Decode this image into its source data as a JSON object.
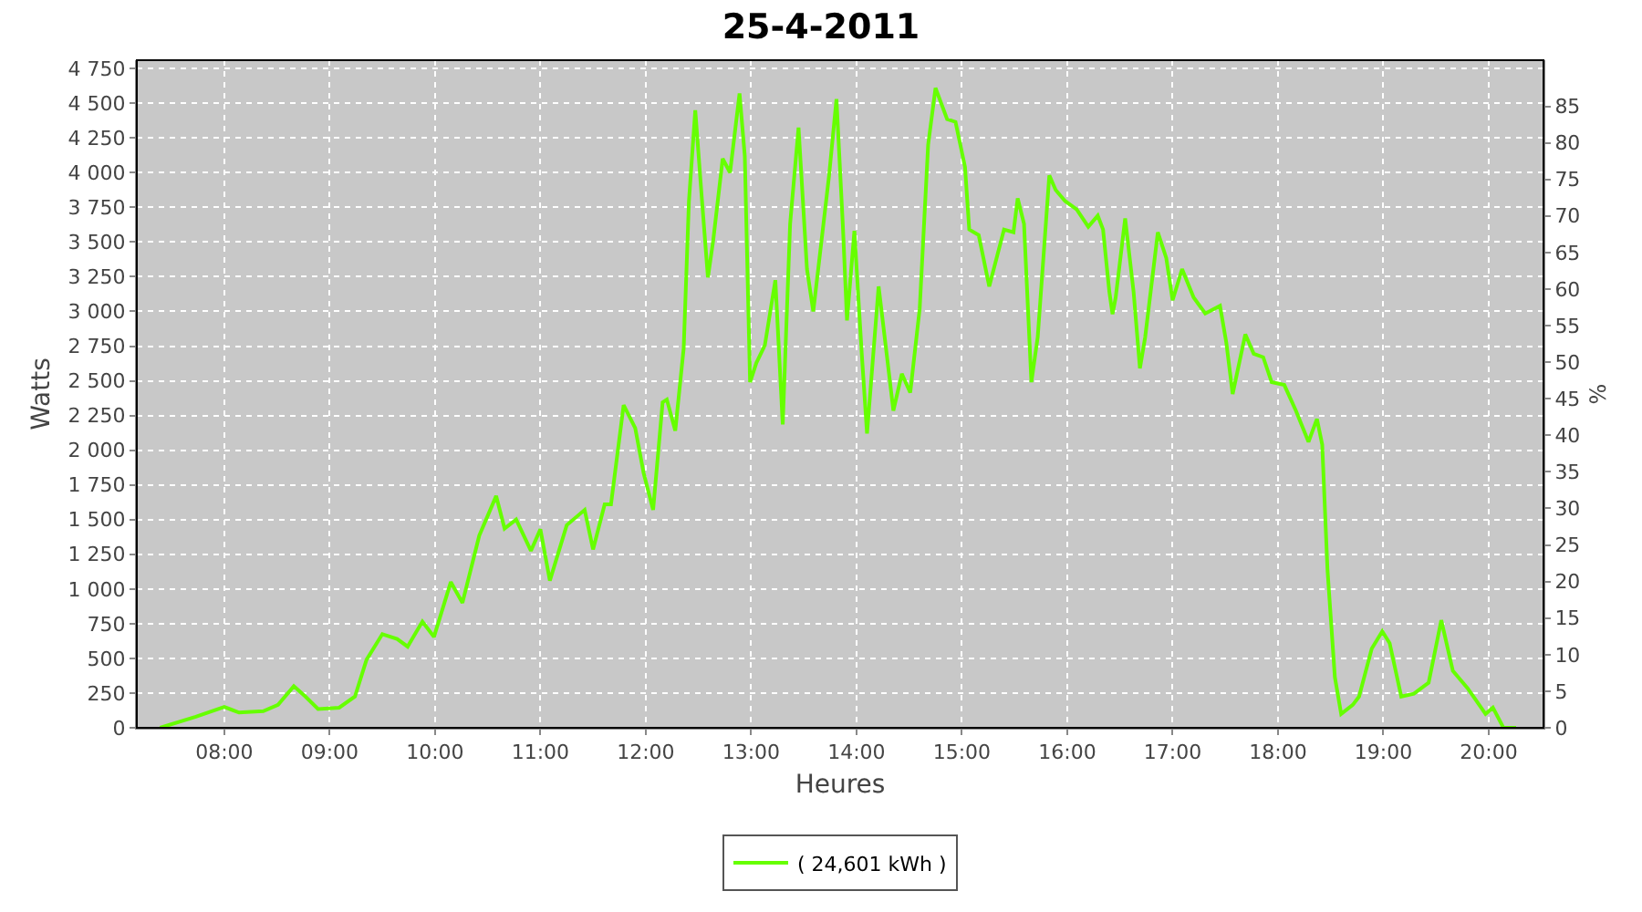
{
  "chart_data": {
    "type": "line",
    "title": "25-4-2011",
    "xlabel": "Heures",
    "ylabel": "Watts",
    "y2label": "%",
    "x": [
      7.39,
      7.73,
      8.0,
      8.14,
      8.37,
      8.51,
      8.66,
      8.77,
      8.89,
      9.09,
      9.24,
      9.35,
      9.5,
      9.64,
      9.74,
      9.88,
      9.99,
      10.15,
      10.26,
      10.42,
      10.58,
      10.66,
      10.77,
      10.91,
      11.0,
      11.09,
      11.25,
      11.42,
      11.5,
      11.61,
      11.67,
      11.79,
      11.9,
      11.98,
      12.07,
      12.16,
      12.2,
      12.28,
      12.36,
      12.41,
      12.47,
      12.53,
      12.59,
      12.64,
      12.73,
      12.8,
      12.89,
      12.94,
      12.99,
      13.05,
      13.13,
      13.23,
      13.3,
      13.37,
      13.45,
      13.53,
      13.59,
      13.74,
      13.81,
      13.87,
      13.91,
      13.98,
      14.05,
      14.1,
      14.21,
      14.28,
      14.35,
      14.43,
      14.51,
      14.6,
      14.68,
      14.75,
      14.86,
      14.94,
      15.03,
      15.07,
      15.16,
      15.26,
      15.4,
      15.49,
      15.53,
      15.59,
      15.66,
      15.72,
      15.83,
      15.89,
      15.98,
      16.09,
      16.2,
      16.29,
      16.34,
      16.4,
      16.43,
      16.46,
      16.55,
      16.63,
      16.69,
      16.74,
      16.86,
      16.94,
      17.0,
      17.09,
      17.2,
      17.31,
      17.45,
      17.51,
      17.57,
      17.69,
      17.77,
      17.86,
      17.94,
      18.06,
      18.17,
      18.29,
      18.37,
      18.42,
      18.47,
      18.54,
      18.6,
      18.71,
      18.77,
      18.89,
      18.99,
      19.06,
      19.17,
      19.29,
      19.43,
      19.55,
      19.66,
      19.8,
      19.97,
      20.04,
      20.14,
      20.26
    ],
    "series": [
      {
        "name": "( 24,601 kWh )",
        "color": "#66ff00",
        "values": [
          0,
          80,
          150,
          110,
          120,
          165,
          300,
          225,
          135,
          145,
          225,
          490,
          675,
          640,
          585,
          765,
          655,
          1050,
          900,
          1385,
          1670,
          1435,
          1500,
          1275,
          1430,
          1060,
          1460,
          1570,
          1285,
          1610,
          1610,
          2325,
          2160,
          1835,
          1570,
          2345,
          2365,
          2140,
          2735,
          3795,
          4450,
          3835,
          3245,
          3510,
          4100,
          4000,
          4570,
          4120,
          2490,
          2630,
          2755,
          3225,
          2185,
          3630,
          4325,
          3305,
          3000,
          3980,
          4530,
          3630,
          2935,
          3580,
          2695,
          2120,
          3180,
          2735,
          2285,
          2550,
          2415,
          3020,
          4200,
          4610,
          4385,
          4365,
          4040,
          3590,
          3550,
          3180,
          3590,
          3570,
          3815,
          3630,
          2490,
          2815,
          3980,
          3875,
          3795,
          3735,
          3610,
          3690,
          3590,
          3140,
          2980,
          3100,
          3670,
          3140,
          2590,
          2815,
          3570,
          3385,
          3080,
          3305,
          3100,
          2985,
          3040,
          2775,
          2405,
          2835,
          2695,
          2670,
          2490,
          2470,
          2285,
          2060,
          2225,
          2040,
          1140,
          365,
          100,
          165,
          225,
          570,
          695,
          610,
          225,
          245,
          325,
          775,
          410,
          285,
          100,
          145,
          0,
          0
        ]
      }
    ],
    "xlim": [
      7.17,
      20.52
    ],
    "xticks": [
      {
        "value": 8,
        "label": "08:00"
      },
      {
        "value": 9,
        "label": "09:00"
      },
      {
        "value": 10,
        "label": "10:00"
      },
      {
        "value": 11,
        "label": "11:00"
      },
      {
        "value": 12,
        "label": "12:00"
      },
      {
        "value": 13,
        "label": "13:00"
      },
      {
        "value": 14,
        "label": "14:00"
      },
      {
        "value": 15,
        "label": "15:00"
      },
      {
        "value": 16,
        "label": "16:00"
      },
      {
        "value": 17,
        "label": "17:00"
      },
      {
        "value": 18,
        "label": "18:00"
      },
      {
        "value": 19,
        "label": "19:00"
      },
      {
        "value": 20,
        "label": "20:00"
      }
    ],
    "ylim": [
      0,
      4810
    ],
    "yticks": [
      0,
      250,
      500,
      750,
      {
        "value": 1000,
        "label": "1 000"
      },
      {
        "value": 1250,
        "label": "1 250"
      },
      {
        "value": 1500,
        "label": "1 500"
      },
      {
        "value": 1750,
        "label": "1 750"
      },
      {
        "value": 2000,
        "label": "2 000"
      },
      {
        "value": 2250,
        "label": "2 250"
      },
      {
        "value": 2500,
        "label": "2 500"
      },
      {
        "value": 2750,
        "label": "2 750"
      },
      {
        "value": 3000,
        "label": "3 000"
      },
      {
        "value": 3250,
        "label": "3 250"
      },
      {
        "value": 3500,
        "label": "3 500"
      },
      {
        "value": 3750,
        "label": "3 750"
      },
      {
        "value": 4000,
        "label": "4 000"
      },
      {
        "value": 4250,
        "label": "4 250"
      },
      {
        "value": 4500,
        "label": "4 500"
      },
      {
        "value": 4750,
        "label": "4 750"
      }
    ],
    "y2lim": [
      0,
      91.3
    ],
    "y2ticks": [
      0,
      5,
      10,
      15,
      20,
      25,
      30,
      35,
      40,
      45,
      50,
      55,
      60,
      65,
      70,
      75,
      80,
      85
    ],
    "grid": true,
    "legend": "bottom",
    "marker": "none",
    "line_style": "solid"
  }
}
